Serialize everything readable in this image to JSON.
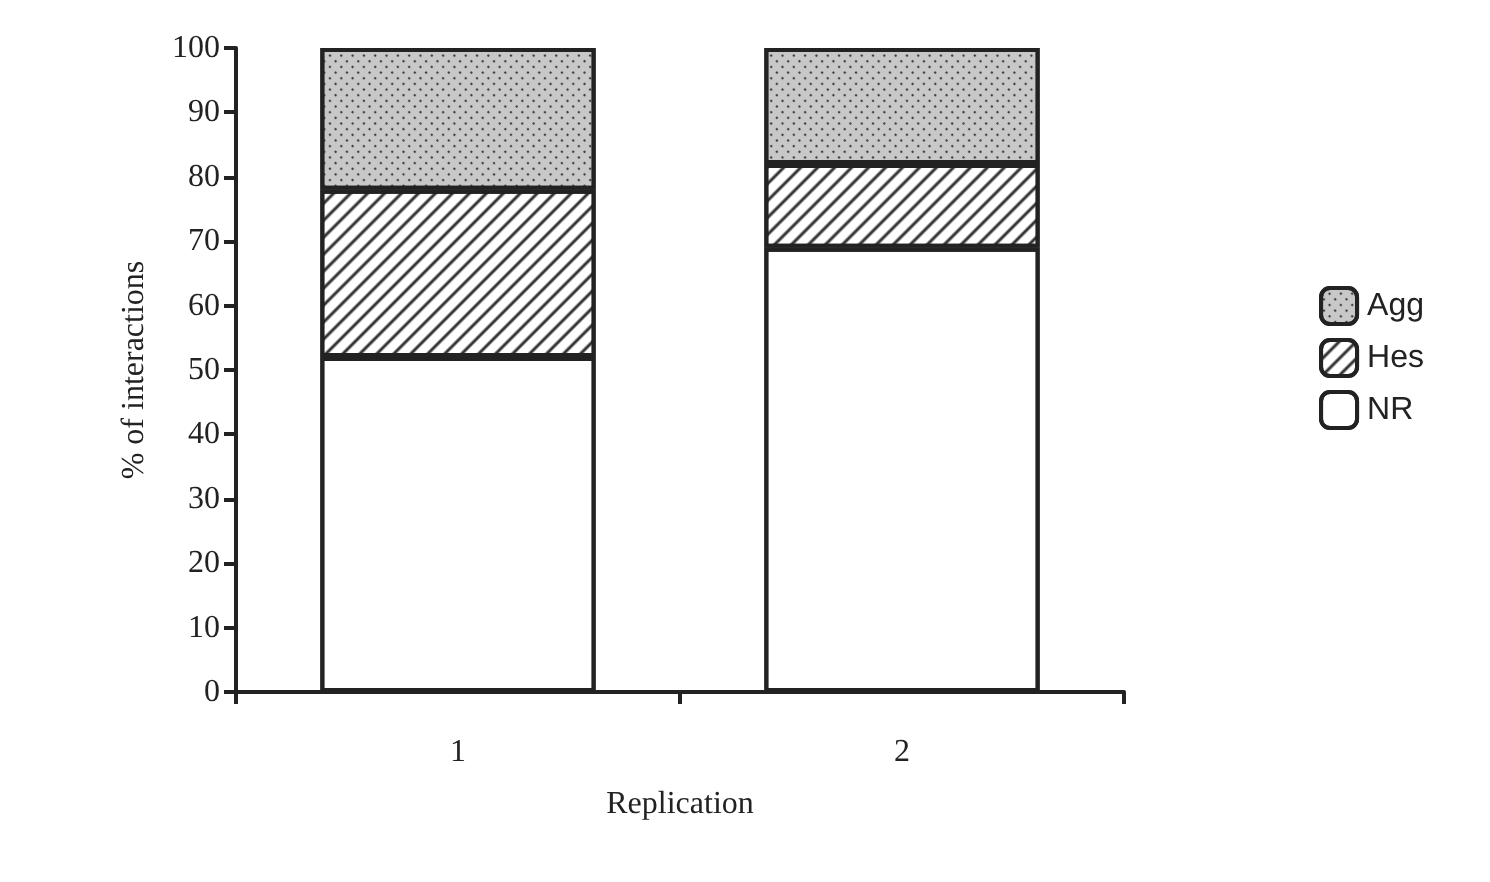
{
  "chart_data": {
    "type": "bar",
    "stacked": true,
    "xlabel": "Replication",
    "ylabel": "% of interactions",
    "categories": [
      "1",
      "2"
    ],
    "series": [
      {
        "name": "NR",
        "color": "#ffffff",
        "values": [
          52,
          69
        ]
      },
      {
        "name": "Hes",
        "color": "#ffffff",
        "values": [
          26,
          13
        ]
      },
      {
        "name": "Agg",
        "color": "#c8c8c8",
        "values": [
          22,
          18
        ]
      }
    ],
    "ylim": [
      0,
      100
    ],
    "yticks": [
      0,
      10,
      20,
      30,
      40,
      50,
      60,
      70,
      80,
      90,
      100
    ],
    "grid": false,
    "legend": "right"
  }
}
